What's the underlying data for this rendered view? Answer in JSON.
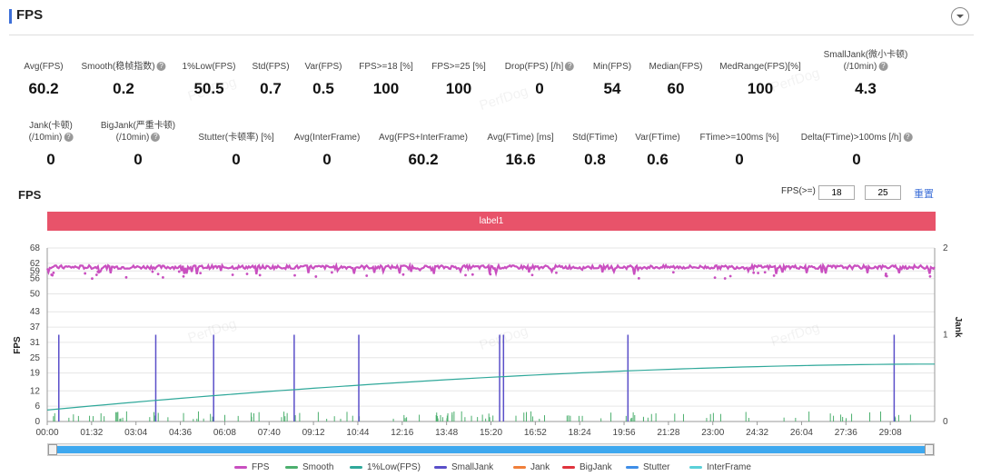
{
  "header": {
    "title": "FPS"
  },
  "metrics_row1": [
    {
      "label": "Avg(FPS)",
      "value": "60.2",
      "help": false
    },
    {
      "label": "Smooth(稳帧指数)",
      "value": "0.2",
      "help": true
    },
    {
      "label": "1%Low(FPS)",
      "value": "50.5",
      "help": false
    },
    {
      "label": "Std(FPS)",
      "value": "0.7",
      "help": false
    },
    {
      "label": "Var(FPS)",
      "value": "0.5",
      "help": false
    },
    {
      "label": "FPS>=18 [%]",
      "value": "100",
      "help": false
    },
    {
      "label": "FPS>=25 [%]",
      "value": "100",
      "help": false
    },
    {
      "label": "Drop(FPS) [/h]",
      "value": "0",
      "help": true
    },
    {
      "label": "Min(FPS)",
      "value": "54",
      "help": false
    },
    {
      "label": "Median(FPS)",
      "value": "60",
      "help": false
    },
    {
      "label": "MedRange(FPS)[%]",
      "value": "100",
      "help": false
    },
    {
      "label": "SmallJank(微小卡顿)",
      "label2": "(/10min)",
      "value": "4.3",
      "help": true
    }
  ],
  "metrics_row2": [
    {
      "label": "Jank(卡顿)",
      "label2": "(/10min)",
      "value": "0",
      "help": true
    },
    {
      "label": "BigJank(严重卡顿)",
      "label2": "(/10min)",
      "value": "0",
      "help": true
    },
    {
      "label": "Stutter(卡顿率) [%]",
      "value": "0",
      "help": false
    },
    {
      "label": "Avg(InterFrame)",
      "value": "0",
      "help": false
    },
    {
      "label": "Avg(FPS+InterFrame)",
      "value": "60.2",
      "help": false
    },
    {
      "label": "Avg(FTime) [ms]",
      "value": "16.6",
      "help": false
    },
    {
      "label": "Std(FTime)",
      "value": "0.8",
      "help": false
    },
    {
      "label": "Var(FTime)",
      "value": "0.6",
      "help": false
    },
    {
      "label": "FTime>=100ms [%]",
      "value": "0",
      "help": false
    },
    {
      "label": "Delta(FTime)>100ms [/h]",
      "value": "0",
      "help": true
    }
  ],
  "chart_section": {
    "title": "FPS",
    "threshold_label": "FPS(>=)",
    "threshold_1": "18",
    "threshold_2": "25",
    "reset_label": "重置",
    "band_label": "label1"
  },
  "watermark": "PerfDog",
  "chart_data": {
    "type": "line",
    "ylabel": "FPS",
    "y2label": "Jank",
    "yticks": [
      "68",
      "62",
      "59",
      "56",
      "50",
      "43",
      "37",
      "31",
      "25",
      "19",
      "12",
      "6",
      "0"
    ],
    "y2ticks": [
      "2",
      "1",
      "0"
    ],
    "xticks": [
      "00:00",
      "01:32",
      "03:04",
      "04:36",
      "06:08",
      "07:40",
      "09:12",
      "10:44",
      "12:16",
      "13:48",
      "15:20",
      "16:52",
      "18:24",
      "19:56",
      "21:28",
      "23:00",
      "24:32",
      "26:04",
      "27:36",
      "29:08"
    ],
    "xlim": [
      "00:00",
      "30:40"
    ],
    "ylim": [
      0,
      68
    ],
    "y2lim": [
      0,
      2
    ],
    "series": [
      {
        "name": "FPS",
        "color": "#c94fc0",
        "approx_value": 60.2,
        "range": [
          54,
          61
        ]
      },
      {
        "name": "Smooth",
        "color": "#4caf6e"
      },
      {
        "name": "1%Low(FPS)",
        "color": "#2fa89a",
        "x": [
          "00:00",
          "07:40",
          "15:20",
          "23:00",
          "30:40"
        ],
        "values": [
          4.5,
          13,
          17,
          20,
          22.5
        ]
      },
      {
        "name": "SmallJank",
        "color": "#5a4fc9",
        "jank_times": [
          "00:24",
          "03:45",
          "05:45",
          "08:32",
          "10:46",
          "15:46",
          "20:04",
          "29:16"
        ]
      },
      {
        "name": "Jank",
        "color": "#f07f3a"
      },
      {
        "name": "BigJank",
        "color": "#e0333d"
      },
      {
        "name": "Stutter",
        "color": "#3e8ee8"
      },
      {
        "name": "InterFrame",
        "color": "#5bd0d8"
      }
    ]
  }
}
